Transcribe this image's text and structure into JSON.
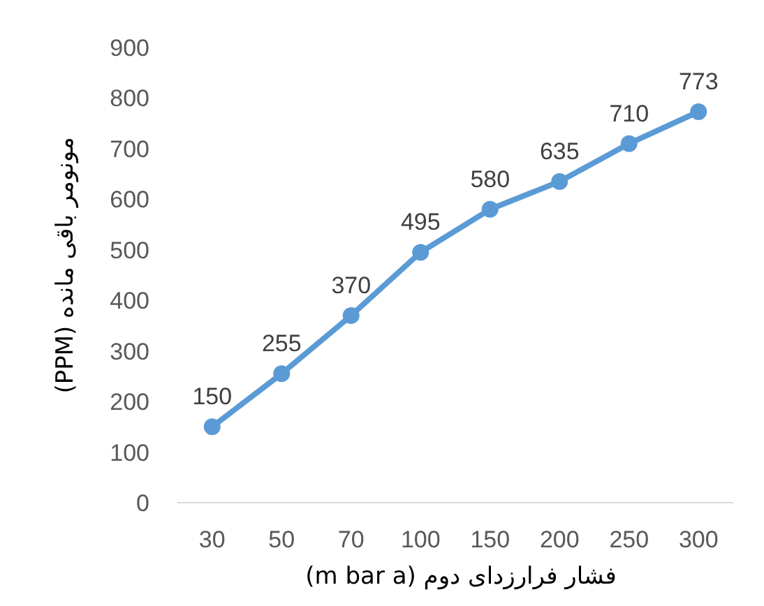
{
  "chart_data": {
    "type": "line",
    "xlabel": "فشار فرارزدای دوم (m bar a)",
    "ylabel": "مونومر باقی مانده (PPM)",
    "categories": [
      "30",
      "50",
      "70",
      "100",
      "150",
      "200",
      "250",
      "300"
    ],
    "series": [
      {
        "color": "#5b9bd5",
        "values": [
          150,
          255,
          370,
          495,
          580,
          635,
          710,
          773
        ]
      }
    ],
    "ylim": [
      0,
      900
    ],
    "yticks": [
      0,
      100,
      200,
      300,
      400,
      500,
      600,
      700,
      800,
      900
    ],
    "data_labels": true,
    "marker": "circle",
    "line_style": "solid",
    "grid": false
  }
}
